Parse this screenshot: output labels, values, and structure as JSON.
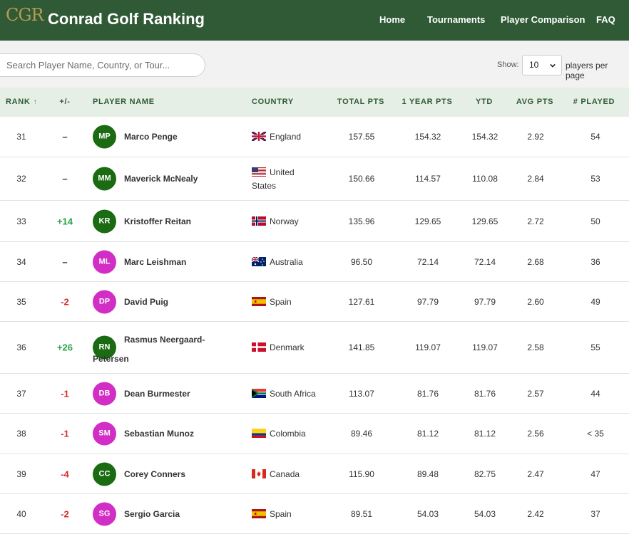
{
  "header": {
    "logo": "CGR",
    "brand": "Conrad Golf Ranking",
    "nav": [
      "Home",
      "Tournaments",
      "Player Comparison",
      "FAQ"
    ]
  },
  "toolbar": {
    "search_placeholder": "Search Player Name, Country, or Tour...",
    "show_label": "Show:",
    "page_size": "10",
    "per_page_label": "players per page"
  },
  "table": {
    "columns": {
      "rank": "RANK",
      "sort_arrow": "↑",
      "change": "+/-",
      "player": "PLAYER NAME",
      "country": "COUNTRY",
      "total": "TOTAL PTS",
      "year": "1 YEAR PTS",
      "ytd": "YTD",
      "avg": "AVG PTS",
      "played": "# PLAYED"
    },
    "rows": [
      {
        "rank": "31",
        "change": "–",
        "change_type": "neutral",
        "initials": "MP",
        "avatar_color": "#1b6b12",
        "name": "Marco Penge",
        "country": "England",
        "flag": "eng",
        "total": "157.55",
        "year": "154.32",
        "ytd": "154.32",
        "avg": "2.92",
        "played": "54"
      },
      {
        "rank": "32",
        "change": "–",
        "change_type": "neutral",
        "initials": "MM",
        "avatar_color": "#1b6b12",
        "name": "Maverick McNealy",
        "country": "United States",
        "country_first": "United",
        "country_second": "States",
        "flag": "usa",
        "total": "150.66",
        "year": "114.57",
        "ytd": "110.08",
        "avg": "2.84",
        "played": "53"
      },
      {
        "rank": "33",
        "change": "+14",
        "change_type": "up",
        "initials": "KR",
        "avatar_color": "#1b6b12",
        "name": "Kristoffer Reitan",
        "country": "Norway",
        "flag": "nor",
        "total": "135.96",
        "year": "129.65",
        "ytd": "129.65",
        "avg": "2.72",
        "played": "50"
      },
      {
        "rank": "34",
        "change": "–",
        "change_type": "neutral",
        "initials": "ML",
        "avatar_color": "#d22ec6",
        "name": "Marc Leishman",
        "country": "Australia",
        "flag": "aus",
        "total": "96.50",
        "year": "72.14",
        "ytd": "72.14",
        "avg": "2.68",
        "played": "36"
      },
      {
        "rank": "35",
        "change": "-2",
        "change_type": "down",
        "initials": "DP",
        "avatar_color": "#d22ec6",
        "name": "David Puig",
        "country": "Spain",
        "flag": "esp",
        "total": "127.61",
        "year": "97.79",
        "ytd": "97.79",
        "avg": "2.60",
        "played": "49"
      },
      {
        "rank": "36",
        "change": "+26",
        "change_type": "up",
        "initials": "RN",
        "avatar_color": "#1b6b12",
        "name": "Rasmus Neergaard-Petersen",
        "name_first": "Rasmus Neergaard-",
        "name_second": "Petersen",
        "country": "Denmark",
        "flag": "den",
        "total": "141.85",
        "year": "119.07",
        "ytd": "119.07",
        "avg": "2.58",
        "played": "55"
      },
      {
        "rank": "37",
        "change": "-1",
        "change_type": "down",
        "initials": "DB",
        "avatar_color": "#d22ec6",
        "name": "Dean Burmester",
        "country": "South Africa",
        "flag": "rsa",
        "total": "113.07",
        "year": "81.76",
        "ytd": "81.76",
        "avg": "2.57",
        "played": "44"
      },
      {
        "rank": "38",
        "change": "-1",
        "change_type": "down",
        "initials": "SM",
        "avatar_color": "#d22ec6",
        "name": "Sebastian Munoz",
        "country": "Colombia",
        "flag": "col",
        "total": "89.46",
        "year": "81.12",
        "ytd": "81.12",
        "avg": "2.56",
        "played": "< 35"
      },
      {
        "rank": "39",
        "change": "-4",
        "change_type": "down",
        "initials": "CC",
        "avatar_color": "#1b6b12",
        "name": "Corey Conners",
        "country": "Canada",
        "flag": "can",
        "total": "115.90",
        "year": "89.48",
        "ytd": "82.75",
        "avg": "2.47",
        "played": "47"
      },
      {
        "rank": "40",
        "change": "-2",
        "change_type": "down",
        "initials": "SG",
        "avatar_color": "#d22ec6",
        "name": "Sergio Garcia",
        "country": "Spain",
        "flag": "esp",
        "total": "89.51",
        "year": "54.03",
        "ytd": "54.03",
        "avg": "2.42",
        "played": "37"
      }
    ]
  },
  "colors": {
    "header_bg": "#2f5a35",
    "logo": "#b69a52",
    "thead_bg": "#e6efe5",
    "thead_text": "#2f5a35",
    "up": "#2aa14a",
    "down": "#d62c2c",
    "neutral": "#333333"
  }
}
